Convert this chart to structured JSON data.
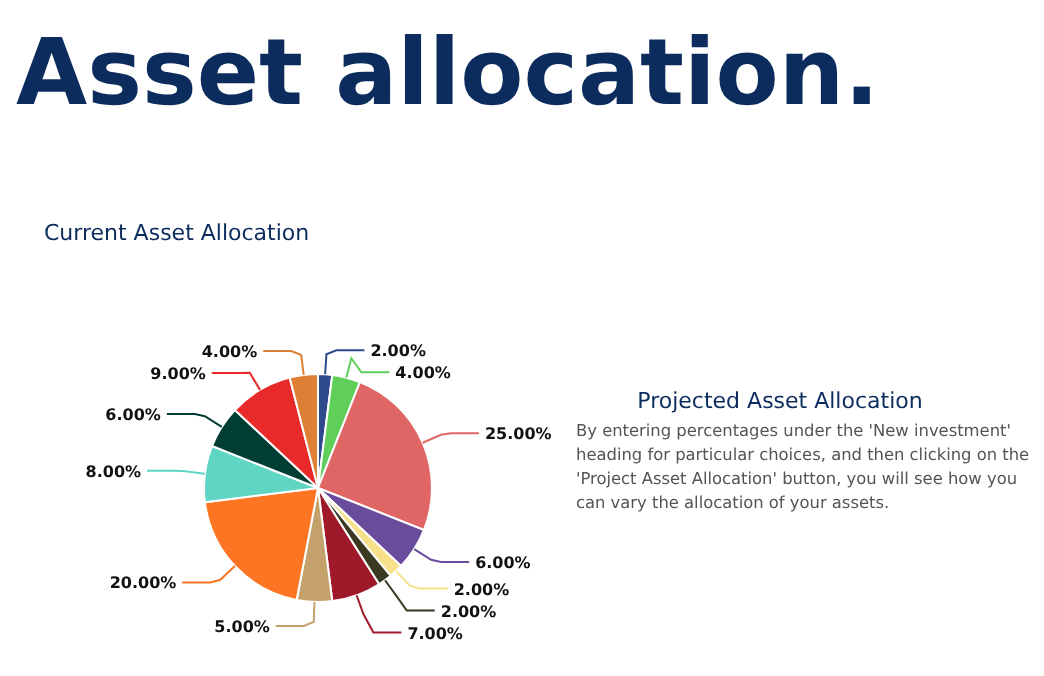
{
  "chart_data": {
    "type": "pie",
    "title": "Asset allocation.",
    "subtitle": "Current Asset Allocation",
    "categories": [
      null,
      null,
      null,
      null,
      null,
      null,
      null,
      null,
      null,
      null,
      null,
      null,
      null
    ],
    "values": [
      2,
      4,
      25,
      6,
      2,
      2,
      7,
      5,
      20,
      8,
      6,
      9,
      4
    ],
    "value_labels": [
      "2.00%",
      "4.00%",
      "25.00%",
      "6.00%",
      "2.00%",
      "2.00%",
      "7.00%",
      "5.00%",
      "20.00%",
      "8.00%",
      "6.00%",
      "9.00%",
      "4.00%"
    ],
    "colors": [
      "#2e4a8c",
      "#5fcf5a",
      "#e06666",
      "#6a4c9c",
      "#f7e08a",
      "#3a3a22",
      "#a0192a",
      "#c4a06a",
      "#fd7522",
      "#5fd6c3",
      "#003d33",
      "#e82a2a",
      "#dd8035"
    ],
    "annotations": [
      "Projected Asset Allocation",
      "By entering percentages under the 'New investment' heading for particular choices, and then clicking on the 'Project Asset Allocation' button, you will see how you can vary the allocation of your assets."
    ]
  }
}
